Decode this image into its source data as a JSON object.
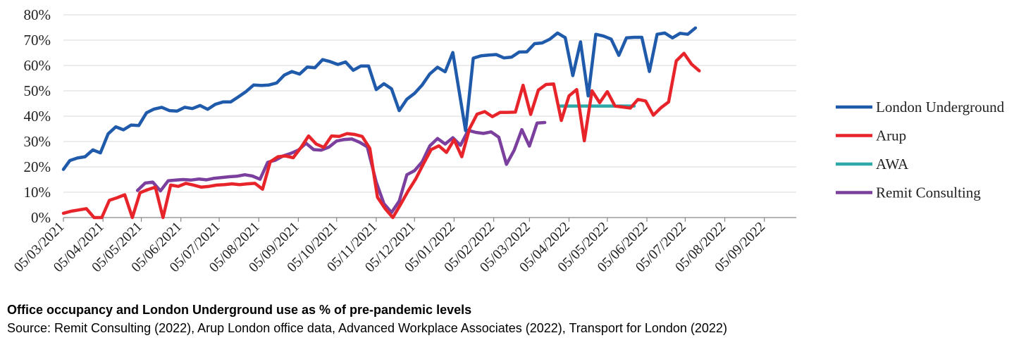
{
  "caption": {
    "title": "Office occupancy and London Underground use as % of pre-pandemic levels",
    "source": "Source: Remit Consulting (2022), Arup London office data, Advanced Workplace Associates (2022), Transport for London (2022)"
  },
  "chart_data": {
    "type": "line",
    "x_start": "2021-03-05",
    "x_end": "2022-09-30",
    "ylim": [
      0,
      80
    ],
    "y_ticks": [
      0,
      10,
      20,
      30,
      40,
      50,
      60,
      70,
      80
    ],
    "y_tick_labels": [
      "0%",
      "10%",
      "20%",
      "30%",
      "40%",
      "50%",
      "60%",
      "70%",
      "80%"
    ],
    "x_ticks": [
      "2021-03-05",
      "2021-04-05",
      "2021-05-05",
      "2021-06-05",
      "2021-07-05",
      "2021-08-05",
      "2021-09-05",
      "2021-10-05",
      "2021-11-05",
      "2021-12-05",
      "2022-01-05",
      "2022-02-05",
      "2022-03-05",
      "2022-04-05",
      "2022-05-05",
      "2022-06-05",
      "2022-07-05",
      "2022-08-05",
      "2022-09-05"
    ],
    "x_tick_labels": [
      "05/03/2021",
      "05/04/2021",
      "05/05/2021",
      "05/06/2021",
      "05/07/2021",
      "05/08/2021",
      "05/09/2021",
      "05/10/2021",
      "05/11/2021",
      "05/12/2021",
      "05/01/2022",
      "05/02/2022",
      "05/03/2022",
      "05/04/2022",
      "05/05/2022",
      "05/06/2022",
      "05/07/2022",
      "05/08/2022",
      "05/09/2022"
    ],
    "grid": true,
    "legend_position": "right",
    "series": [
      {
        "name": "London Underground",
        "color": "#1f5aab",
        "points": [
          [
            "2021-03-05",
            19
          ],
          [
            "2021-03-10",
            22.5
          ],
          [
            "2021-03-16",
            23.5
          ],
          [
            "2021-03-22",
            24
          ],
          [
            "2021-03-28",
            26.7
          ],
          [
            "2021-04-03",
            25.5
          ],
          [
            "2021-04-09",
            33
          ],
          [
            "2021-04-15",
            35.8
          ],
          [
            "2021-04-21",
            34.6
          ],
          [
            "2021-04-27",
            36.5
          ],
          [
            "2021-05-03",
            36.3
          ],
          [
            "2021-05-09",
            41.3
          ],
          [
            "2021-05-15",
            42.8
          ],
          [
            "2021-05-21",
            43.5
          ],
          [
            "2021-05-27",
            42.2
          ],
          [
            "2021-06-02",
            42
          ],
          [
            "2021-06-08",
            43.5
          ],
          [
            "2021-06-14",
            43
          ],
          [
            "2021-06-20",
            44.2
          ],
          [
            "2021-06-26",
            42.7
          ],
          [
            "2021-07-02",
            44.7
          ],
          [
            "2021-07-08",
            45.6
          ],
          [
            "2021-07-14",
            45.6
          ],
          [
            "2021-07-20",
            47.6
          ],
          [
            "2021-07-26",
            49.7
          ],
          [
            "2021-08-01",
            52.3
          ],
          [
            "2021-08-07",
            52.1
          ],
          [
            "2021-08-13",
            52.3
          ],
          [
            "2021-08-19",
            53.1
          ],
          [
            "2021-08-25",
            56.2
          ],
          [
            "2021-08-31",
            57.6
          ],
          [
            "2021-09-06",
            56.6
          ],
          [
            "2021-09-12",
            59.4
          ],
          [
            "2021-09-18",
            59.1
          ],
          [
            "2021-09-24",
            62.3
          ],
          [
            "2021-09-30",
            61.5
          ],
          [
            "2021-10-06",
            60.4
          ],
          [
            "2021-10-12",
            61.4
          ],
          [
            "2021-10-18",
            58.1
          ],
          [
            "2021-10-24",
            59.8
          ],
          [
            "2021-10-30",
            59.8
          ],
          [
            "2021-11-05",
            50.5
          ],
          [
            "2021-11-11",
            52.8
          ],
          [
            "2021-11-17",
            50.8
          ],
          [
            "2021-11-23",
            42.2
          ],
          [
            "2021-11-29",
            46.7
          ],
          [
            "2021-12-05",
            49
          ],
          [
            "2021-12-11",
            52.3
          ],
          [
            "2021-12-17",
            56.7
          ],
          [
            "2021-12-23",
            59.3
          ],
          [
            "2021-12-29",
            57.5
          ],
          [
            "2022-01-04",
            65.1
          ],
          [
            "2022-01-14",
            34.3
          ],
          [
            "2022-01-20",
            62.9
          ],
          [
            "2022-01-26",
            63.8
          ],
          [
            "2022-02-01",
            64.1
          ],
          [
            "2022-02-07",
            64.3
          ],
          [
            "2022-02-13",
            63
          ],
          [
            "2022-02-19",
            63.3
          ],
          [
            "2022-02-25",
            65.3
          ],
          [
            "2022-03-03",
            65.4
          ],
          [
            "2022-03-09",
            68.6
          ],
          [
            "2022-03-15",
            68.9
          ],
          [
            "2022-03-21",
            70.4
          ],
          [
            "2022-03-27",
            72.8
          ],
          [
            "2022-04-02",
            71
          ],
          [
            "2022-04-08",
            56
          ],
          [
            "2022-04-14",
            69.3
          ],
          [
            "2022-04-20",
            48
          ],
          [
            "2022-04-26",
            72.3
          ],
          [
            "2022-05-02",
            71.6
          ],
          [
            "2022-05-08",
            70.4
          ],
          [
            "2022-05-14",
            64
          ],
          [
            "2022-05-20",
            70.9
          ],
          [
            "2022-05-26",
            71.1
          ],
          [
            "2022-06-01",
            71.1
          ],
          [
            "2022-06-07",
            57.6
          ],
          [
            "2022-06-13",
            72.3
          ],
          [
            "2022-06-19",
            72.8
          ],
          [
            "2022-06-25",
            70.9
          ],
          [
            "2022-07-01",
            72.7
          ],
          [
            "2022-07-07",
            72.3
          ],
          [
            "2022-07-13",
            74.8
          ]
        ]
      },
      {
        "name": "Arup",
        "color": "#e8242b",
        "points": [
          [
            "2021-03-05",
            1.7
          ],
          [
            "2021-03-11",
            2.5
          ],
          [
            "2021-03-17",
            3
          ],
          [
            "2021-03-23",
            3.5
          ],
          [
            "2021-03-29",
            0
          ],
          [
            "2021-04-04",
            0
          ],
          [
            "2021-04-10",
            6.8
          ],
          [
            "2021-04-16",
            7.8
          ],
          [
            "2021-04-22",
            9
          ],
          [
            "2021-04-28",
            0
          ],
          [
            "2021-05-04",
            9.8
          ],
          [
            "2021-05-10",
            11
          ],
          [
            "2021-05-16",
            12
          ],
          [
            "2021-05-22",
            0
          ],
          [
            "2021-05-28",
            12.8
          ],
          [
            "2021-06-03",
            12.3
          ],
          [
            "2021-06-09",
            13.5
          ],
          [
            "2021-06-15",
            12.8
          ],
          [
            "2021-06-21",
            12
          ],
          [
            "2021-06-27",
            12.3
          ],
          [
            "2021-07-03",
            12.8
          ],
          [
            "2021-07-09",
            13
          ],
          [
            "2021-07-15",
            13.3
          ],
          [
            "2021-07-21",
            13
          ],
          [
            "2021-07-27",
            13.3
          ],
          [
            "2021-08-02",
            13.5
          ],
          [
            "2021-08-08",
            11.2
          ],
          [
            "2021-08-14",
            22
          ],
          [
            "2021-08-20",
            24
          ],
          [
            "2021-08-26",
            24.3
          ],
          [
            "2021-09-01",
            23.6
          ],
          [
            "2021-09-07",
            27.6
          ],
          [
            "2021-09-13",
            32.2
          ],
          [
            "2021-09-19",
            29
          ],
          [
            "2021-09-25",
            27.7
          ],
          [
            "2021-10-01",
            32.2
          ],
          [
            "2021-10-07",
            32
          ],
          [
            "2021-10-13",
            33.1
          ],
          [
            "2021-10-19",
            32.8
          ],
          [
            "2021-10-25",
            32
          ],
          [
            "2021-10-31",
            27.3
          ],
          [
            "2021-11-06",
            8
          ],
          [
            "2021-11-12",
            3.5
          ],
          [
            "2021-11-18",
            0
          ],
          [
            "2021-11-24",
            5.1
          ],
          [
            "2021-11-30",
            10.5
          ],
          [
            "2021-12-06",
            15.3
          ],
          [
            "2021-12-12",
            21.2
          ],
          [
            "2021-12-18",
            26.8
          ],
          [
            "2021-12-24",
            28.3
          ],
          [
            "2021-12-30",
            25.7
          ],
          [
            "2022-01-05",
            30.7
          ],
          [
            "2022-01-11",
            24
          ],
          [
            "2022-01-17",
            35
          ],
          [
            "2022-01-23",
            40.8
          ],
          [
            "2022-01-29",
            41.8
          ],
          [
            "2022-02-04",
            39.8
          ],
          [
            "2022-02-10",
            41.5
          ],
          [
            "2022-02-16",
            41.5
          ],
          [
            "2022-02-22",
            41.6
          ],
          [
            "2022-02-28",
            52.2
          ],
          [
            "2022-03-06",
            40.7
          ],
          [
            "2022-03-12",
            50.3
          ],
          [
            "2022-03-18",
            52.5
          ],
          [
            "2022-03-24",
            52.7
          ],
          [
            "2022-03-30",
            38.3
          ],
          [
            "2022-04-05",
            48
          ],
          [
            "2022-04-11",
            50.5
          ],
          [
            "2022-04-17",
            30.3
          ],
          [
            "2022-04-23",
            50
          ],
          [
            "2022-04-29",
            45.3
          ],
          [
            "2022-05-05",
            49.7
          ],
          [
            "2022-05-11",
            44
          ],
          [
            "2022-05-17",
            43.6
          ],
          [
            "2022-05-23",
            43.2
          ],
          [
            "2022-05-29",
            46.6
          ],
          [
            "2022-06-04",
            46
          ],
          [
            "2022-06-10",
            40.4
          ],
          [
            "2022-06-16",
            43.3
          ],
          [
            "2022-06-22",
            45.6
          ],
          [
            "2022-06-28",
            61.8
          ],
          [
            "2022-07-04",
            64.8
          ],
          [
            "2022-07-10",
            60.5
          ],
          [
            "2022-07-16",
            57.9
          ]
        ]
      },
      {
        "name": "AWA",
        "color": "#2ea8a8",
        "points": [
          [
            "2022-03-29",
            44
          ],
          [
            "2022-05-26",
            44
          ]
        ]
      },
      {
        "name": "Remit Consulting",
        "color": "#7b3f9e",
        "points": [
          [
            "2021-05-02",
            10.7
          ],
          [
            "2021-05-08",
            13.6
          ],
          [
            "2021-05-14",
            14
          ],
          [
            "2021-05-20",
            10.5
          ],
          [
            "2021-05-26",
            14.5
          ],
          [
            "2021-06-01",
            14.8
          ],
          [
            "2021-06-07",
            15
          ],
          [
            "2021-06-13",
            14.8
          ],
          [
            "2021-06-19",
            15.2
          ],
          [
            "2021-06-25",
            14.9
          ],
          [
            "2021-07-01",
            15.5
          ],
          [
            "2021-07-07",
            15.8
          ],
          [
            "2021-07-13",
            16.1
          ],
          [
            "2021-07-19",
            16.3
          ],
          [
            "2021-07-25",
            16.9
          ],
          [
            "2021-07-31",
            16.4
          ],
          [
            "2021-08-06",
            15.1
          ],
          [
            "2021-08-12",
            21.8
          ],
          [
            "2021-08-18",
            22.6
          ],
          [
            "2021-08-24",
            24.3
          ],
          [
            "2021-08-30",
            25.3
          ],
          [
            "2021-09-05",
            26.6
          ],
          [
            "2021-09-11",
            29.3
          ],
          [
            "2021-09-17",
            26.8
          ],
          [
            "2021-09-23",
            26.6
          ],
          [
            "2021-09-29",
            27.8
          ],
          [
            "2021-10-05",
            30.2
          ],
          [
            "2021-10-11",
            30.8
          ],
          [
            "2021-10-17",
            31
          ],
          [
            "2021-10-23",
            29.7
          ],
          [
            "2021-10-29",
            27.9
          ],
          [
            "2021-11-05",
            14
          ],
          [
            "2021-11-11",
            5.5
          ],
          [
            "2021-11-17",
            2
          ],
          [
            "2021-11-23",
            6.5
          ],
          [
            "2021-11-29",
            16.9
          ],
          [
            "2021-12-05",
            18.5
          ],
          [
            "2021-12-11",
            22
          ],
          [
            "2021-12-17",
            28.3
          ],
          [
            "2021-12-23",
            31.2
          ],
          [
            "2021-12-29",
            29
          ],
          [
            "2022-01-04",
            31.5
          ],
          [
            "2022-01-10",
            28.5
          ],
          [
            "2022-01-16",
            34.4
          ],
          [
            "2022-01-22",
            33.6
          ],
          [
            "2022-01-28",
            33.2
          ],
          [
            "2022-02-03",
            33.8
          ],
          [
            "2022-02-09",
            31.7
          ],
          [
            "2022-02-15",
            21
          ],
          [
            "2022-02-21",
            26.5
          ],
          [
            "2022-02-27",
            34.7
          ],
          [
            "2022-03-05",
            28.2
          ],
          [
            "2022-03-11",
            37.3
          ],
          [
            "2022-03-17",
            37.5
          ]
        ]
      }
    ]
  }
}
